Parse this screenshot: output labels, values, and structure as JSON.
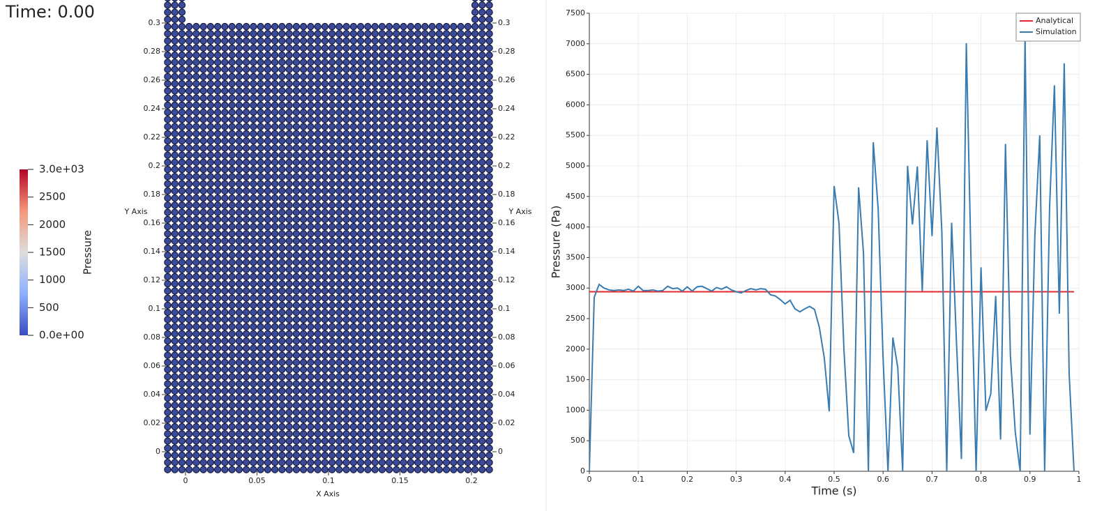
{
  "time_label": "Time: 0.00",
  "colorbar": {
    "title": "Pressure",
    "range": [
      0,
      3000
    ],
    "ticks": [
      {
        "value": 3000,
        "label": "3.0e+03"
      },
      2500,
      2000,
      1500,
      1000,
      500,
      {
        "value": 0,
        "label": "0.0e+00"
      }
    ]
  },
  "particle_view": {
    "x_axis_label": "X Axis",
    "y_axis_label": "Y Axis",
    "xticks": [
      0,
      0.05,
      0.1,
      0.15,
      0.2
    ],
    "yticks": [
      0,
      0.02,
      0.04,
      0.06,
      0.08,
      0.1,
      0.12,
      0.14,
      0.16,
      0.18,
      0.2,
      0.22,
      0.24,
      0.26,
      0.28,
      0.3
    ]
  },
  "chart_data": {
    "type": "line",
    "xlabel": "Time (s)",
    "ylabel": "Pressure (Pa)",
    "xlim": [
      0,
      1
    ],
    "ylim": [
      0,
      7500
    ],
    "xticks": [
      0,
      0.1,
      0.2,
      0.3,
      0.4,
      0.5,
      0.6,
      0.7,
      0.8,
      0.9,
      1
    ],
    "yticks": [
      0,
      500,
      1000,
      1500,
      2000,
      2500,
      3000,
      3500,
      4000,
      4500,
      5000,
      5500,
      6000,
      6500,
      7000,
      7500
    ],
    "grid": true,
    "legend": "upper right",
    "series": [
      {
        "name": "Analytical",
        "color": "#e3282c",
        "x": [
          0,
          0.99
        ],
        "values": [
          2940,
          2940
        ]
      },
      {
        "name": "Simulation",
        "color": "#3a7bb0",
        "x": [
          0,
          0.01,
          0.02,
          0.03,
          0.04,
          0.05,
          0.06,
          0.07,
          0.08,
          0.09,
          0.1,
          0.11,
          0.12,
          0.13,
          0.14,
          0.15,
          0.16,
          0.17,
          0.18,
          0.19,
          0.2,
          0.21,
          0.22,
          0.23,
          0.24,
          0.25,
          0.26,
          0.27,
          0.28,
          0.29,
          0.3,
          0.31,
          0.32,
          0.33,
          0.34,
          0.35,
          0.36,
          0.37,
          0.38,
          0.39,
          0.4,
          0.41,
          0.42,
          0.43,
          0.44,
          0.45,
          0.46,
          0.47,
          0.48,
          0.49,
          0.5,
          0.51,
          0.52,
          0.53,
          0.54,
          0.55,
          0.56,
          0.57,
          0.58,
          0.59,
          0.6,
          0.61,
          0.62,
          0.63,
          0.64,
          0.65,
          0.66,
          0.67,
          0.68,
          0.69,
          0.7,
          0.71,
          0.72,
          0.73,
          0.74,
          0.75,
          0.76,
          0.77,
          0.78,
          0.79,
          0.8,
          0.81,
          0.82,
          0.83,
          0.84,
          0.85,
          0.86,
          0.87,
          0.88,
          0.89,
          0.9,
          0.91,
          0.92,
          0.93,
          0.94,
          0.95,
          0.96,
          0.97,
          0.98,
          0.99
        ],
        "values": [
          0,
          2850,
          3060,
          3000,
          2970,
          2960,
          2970,
          2960,
          2980,
          2950,
          3030,
          2960,
          2960,
          2970,
          2950,
          2960,
          3030,
          2990,
          3000,
          2950,
          3020,
          2950,
          3020,
          3030,
          2990,
          2950,
          3010,
          2980,
          3020,
          2970,
          2940,
          2920,
          2960,
          2990,
          2970,
          2990,
          2980,
          2890,
          2870,
          2810,
          2740,
          2800,
          2660,
          2610,
          2660,
          2700,
          2650,
          2350,
          1850,
          980,
          4670,
          4060,
          2000,
          580,
          300,
          4650,
          3570,
          0,
          5390,
          4290,
          1850,
          0,
          2190,
          1700,
          0,
          5000,
          4040,
          4990,
          2950,
          5420,
          3850,
          5630,
          3930,
          0,
          4070,
          2100,
          200,
          7010,
          3300,
          0,
          3340,
          990,
          1270,
          2870,
          520,
          5360,
          1900,
          640,
          0,
          7100,
          600,
          3860,
          5500,
          0,
          4300,
          6320,
          2580,
          6680,
          1600,
          0
        ]
      }
    ]
  }
}
